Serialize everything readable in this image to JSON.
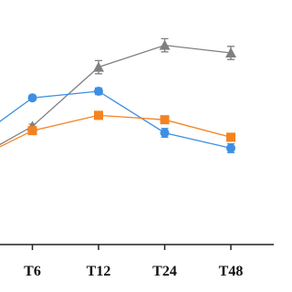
{
  "chart_data": {
    "type": "line",
    "categories": [
      null,
      "T6",
      "T12",
      "T24",
      "T48"
    ],
    "ylim": [
      0,
      100
    ],
    "series": [
      {
        "color": "#808080",
        "marker": "triangle",
        "values": [
          37,
          54,
          81,
          91,
          87.5
        ],
        "errors": [
          1,
          1,
          3,
          3,
          3
        ]
      },
      {
        "color": "#3d8fe3",
        "marker": "circle",
        "values": [
          45,
          67,
          70,
          51,
          44
        ],
        "errors": [
          1,
          1,
          1.5,
          2,
          2
        ]
      },
      {
        "color": "#f58220",
        "marker": "square",
        "values": [
          37,
          52,
          59,
          57,
          49
        ],
        "errors": [
          1,
          1,
          1,
          1,
          1
        ]
      }
    ]
  }
}
